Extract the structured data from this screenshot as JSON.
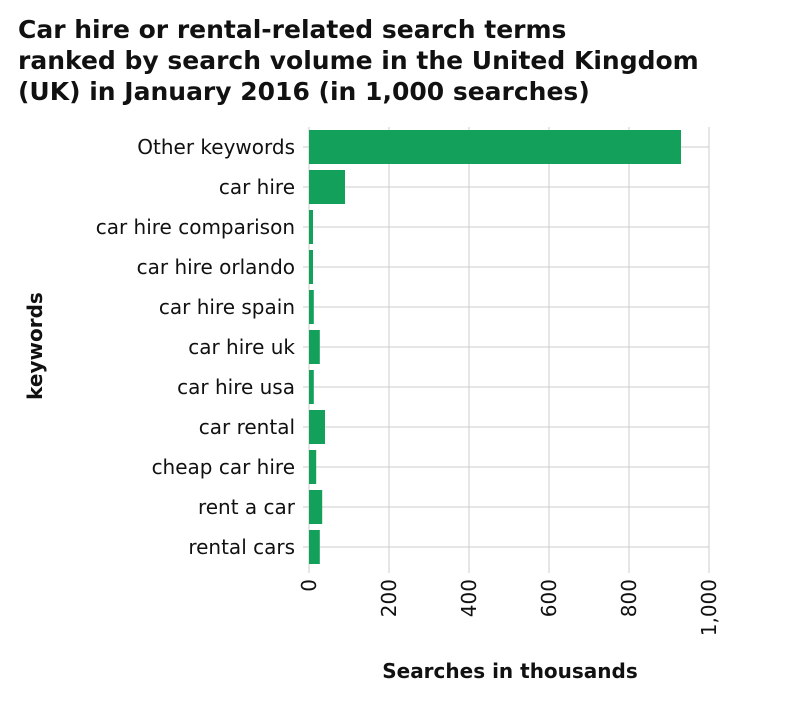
{
  "chart_data": {
    "type": "bar",
    "orientation": "horizontal",
    "title_lines": [
      "Car hire or rental-related search terms",
      "ranked by search volume in the United Kingdom",
      "(UK) in January 2016 (in 1,000 searches)"
    ],
    "xlabel": "Searches in thousands",
    "ylabel": "keywords",
    "categories": [
      "Other keywords",
      "car hire",
      "car hire comparison",
      "car hire orlando",
      "car hire spain",
      "car hire uk",
      "car hire usa",
      "car rental",
      "cheap car hire",
      "rent a car",
      "rental cars"
    ],
    "values": [
      930,
      90,
      10,
      10,
      12,
      27,
      12,
      40,
      18,
      33,
      27
    ],
    "xlim": [
      0,
      1000
    ],
    "xticks": [
      0,
      200,
      400,
      600,
      800,
      1000
    ],
    "xtick_labels": [
      "0",
      "200",
      "400",
      "600",
      "800",
      "1,000"
    ],
    "grid": true,
    "bar_color": "#12a05a",
    "grid_color": "#cccccc"
  }
}
